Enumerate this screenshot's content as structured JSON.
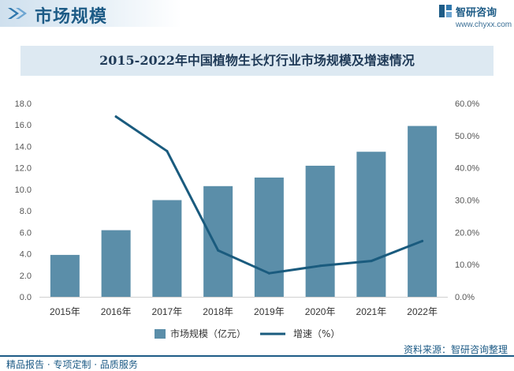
{
  "header": {
    "title": "市场规模",
    "brand_name": "智研咨询",
    "brand_url": "www.chyxx.com"
  },
  "chart_data": {
    "type": "bar",
    "title": "2015-2022年中国植物生长灯行业市场规模及增速情况",
    "categories": [
      "2015年",
      "2016年",
      "2017年",
      "2018年",
      "2019年",
      "2020年",
      "2021年",
      "2022年"
    ],
    "series": [
      {
        "name": "市场规模（亿元）",
        "type": "bar",
        "axis": "left",
        "color": "#5b8ea9",
        "values": [
          3.9,
          6.2,
          9.0,
          10.3,
          11.1,
          12.2,
          13.5,
          15.9
        ]
      },
      {
        "name": "增速（%）",
        "type": "line",
        "axis": "right",
        "color": "#1a5b7e",
        "values": [
          null,
          55.9,
          45.2,
          14.4,
          7.3,
          9.6,
          11.1,
          17.3
        ]
      }
    ],
    "y_left": {
      "ylim": [
        0,
        18
      ],
      "ticks": [
        "0.0",
        "2.0",
        "4.0",
        "6.0",
        "8.0",
        "10.0",
        "12.0",
        "14.0",
        "16.0",
        "18.0"
      ]
    },
    "y_right": {
      "ylim": [
        0,
        60
      ],
      "ticks": [
        "0.0%",
        "10.0%",
        "20.0%",
        "30.0%",
        "40.0%",
        "50.0%",
        "60.0%"
      ]
    },
    "grid": false,
    "legend_position": "bottom"
  },
  "footer": {
    "source": "资料来源：智研咨询整理",
    "tagline": "精品报告 · 专项定制 · 品质服务"
  }
}
